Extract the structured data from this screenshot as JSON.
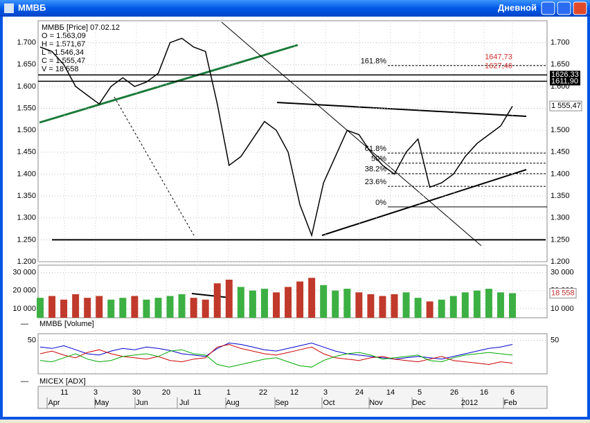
{
  "window": {
    "title": "ММВБ",
    "timeframe": "Дневной"
  },
  "info": [
    "ММВБ [Price] 07.02.12",
    "O = 1.563,09",
    "H = 1.571,67",
    "L = 1.546,34",
    "C = 1.555,47",
    "V = 18 558"
  ],
  "chart_data": [
    {
      "type": "line",
      "name": "price",
      "color": "#000000",
      "values": [
        1690,
        1680,
        1650,
        1600,
        1580,
        1560,
        1600,
        1620,
        1600,
        1610,
        1630,
        1700,
        1710,
        1690,
        1680,
        1560,
        1420,
        1440,
        1480,
        1520,
        1500,
        1450,
        1330,
        1260,
        1380,
        1440,
        1500,
        1490,
        1450,
        1420,
        1400,
        1450,
        1480,
        1370,
        1380,
        1400,
        1440,
        1470,
        1490,
        1510,
        1555
      ],
      "ylim": [
        1200,
        1750
      ],
      "yticks": [
        {
          "value": 1200,
          "label": "1.200"
        },
        {
          "value": 1250,
          "label": "1.250"
        },
        {
          "value": 1300,
          "label": "1.300"
        },
        {
          "value": 1350,
          "label": "1.350"
        },
        {
          "value": 1400,
          "label": "1.400"
        },
        {
          "value": 1450,
          "label": "1.450"
        },
        {
          "value": 1500,
          "label": "1.500"
        },
        {
          "value": 1550,
          "label": "1.550"
        },
        {
          "value": 1600,
          "label": "1.600"
        },
        {
          "value": 1650,
          "label": "1.650"
        },
        {
          "value": 1700,
          "label": "1.700"
        }
      ],
      "grid": true,
      "fibonacci": [
        {
          "value": 1647.7,
          "label": "161.8%"
        },
        {
          "value": 1448,
          "label": "61.8%"
        },
        {
          "value": 1425,
          "label": "50%"
        },
        {
          "value": 1401,
          "label": "38.2%"
        },
        {
          "value": 1372,
          "label": "23.6%"
        },
        {
          "value": 1325,
          "label": "0%"
        }
      ],
      "price_levels": [
        {
          "value": 1626.33,
          "label": "1626,33"
        },
        {
          "value": 1611.9,
          "label": "1611,90"
        }
      ],
      "annotations": [
        {
          "value": 1647.73,
          "label": "1647,73"
        },
        {
          "value": 1627.46,
          "label": "1627,46"
        }
      ],
      "support": 1250,
      "last_price": {
        "value": 1555.47,
        "label": "1 555,47"
      }
    },
    {
      "type": "bar",
      "name": "volume",
      "legend": "ММВБ [Volume]",
      "up_color": "#3cb043",
      "down_color": "#c0392b",
      "values": [
        16000,
        17000,
        15000,
        18000,
        16000,
        17000,
        15000,
        16000,
        17000,
        15000,
        16000,
        17000,
        18000,
        16000,
        15000,
        24000,
        26000,
        22000,
        20000,
        21000,
        19000,
        22000,
        25000,
        27000,
        23000,
        20000,
        21000,
        19000,
        18000,
        17000,
        18000,
        19000,
        16000,
        14000,
        15000,
        17000,
        19000,
        20000,
        21000,
        19000,
        18558
      ],
      "ylim": [
        5000,
        34000
      ],
      "yticks": [
        {
          "value": 10000,
          "label": "10 000"
        },
        {
          "value": 20000,
          "label": "20 000"
        },
        {
          "value": 30000,
          "label": "30 000"
        }
      ],
      "last_label": {
        "value": 18558,
        "label": "18 558"
      }
    },
    {
      "type": "line",
      "name": "adx",
      "legend": "MICEX [ADX]",
      "ylim": [
        0,
        60
      ],
      "yticks": [
        50
      ],
      "series": [
        {
          "color": "#0000cc",
          "values": [
            40,
            38,
            42,
            36,
            30,
            28,
            34,
            38,
            36,
            40,
            38,
            35,
            30,
            28,
            26,
            38,
            46,
            44,
            40,
            36,
            34,
            38,
            42,
            46,
            40,
            34,
            30,
            28,
            26,
            24,
            22,
            24,
            26,
            24,
            22,
            26,
            30,
            34,
            38,
            40,
            44
          ]
        },
        {
          "color": "#cc0000",
          "values": [
            30,
            34,
            28,
            24,
            32,
            36,
            30,
            26,
            24,
            22,
            26,
            20,
            18,
            22,
            24,
            40,
            44,
            38,
            34,
            30,
            28,
            32,
            36,
            40,
            30,
            24,
            22,
            20,
            24,
            26,
            22,
            20,
            18,
            22,
            26,
            20,
            18,
            16,
            14,
            18,
            16
          ]
        },
        {
          "color": "#00aa00",
          "values": [
            20,
            18,
            24,
            30,
            22,
            18,
            20,
            26,
            28,
            30,
            26,
            34,
            36,
            30,
            28,
            14,
            10,
            14,
            18,
            22,
            24,
            18,
            12,
            10,
            20,
            26,
            30,
            32,
            28,
            22,
            24,
            26,
            28,
            20,
            18,
            24,
            28,
            30,
            32,
            30,
            28
          ]
        }
      ]
    }
  ],
  "x_axis": {
    "days": [
      "11",
      "3",
      "30",
      "20",
      "11",
      "1",
      "22",
      "12",
      "3",
      "24",
      "14",
      "5",
      "26",
      "16",
      "6"
    ],
    "months": [
      "Apr",
      "May",
      "Jun",
      "Jul",
      "Aug",
      "Sep",
      "Oct",
      "Nov",
      "Dec",
      "2012",
      "Feb"
    ]
  }
}
